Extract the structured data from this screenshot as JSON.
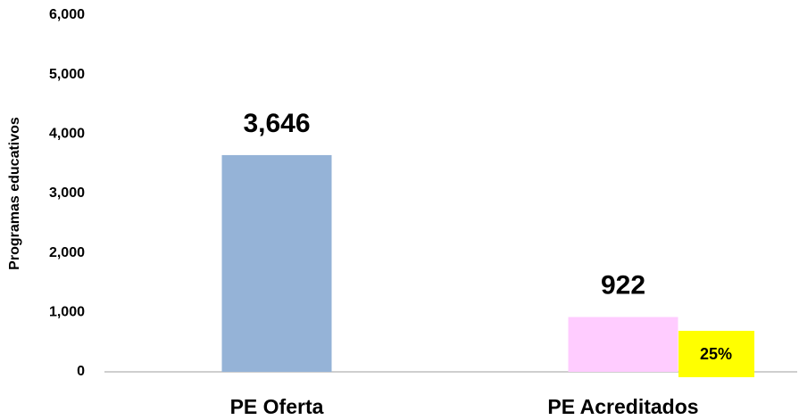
{
  "chart_data": {
    "type": "bar",
    "y_label": "Programas educativos",
    "categories": [
      "PE Oferta",
      "PE Acreditados"
    ],
    "values": [
      3646,
      922
    ],
    "value_labels": [
      "3,646",
      "922"
    ],
    "colors": [
      "#95b3d7",
      "#ffccff"
    ],
    "annotation": "25%",
    "annotation_color": "#ffff00",
    "ylim": [
      0,
      6000
    ],
    "yticks": [
      0,
      {
        "value": 1000,
        "label": "1,000"
      },
      {
        "value": 2000,
        "label": "2,000"
      },
      {
        "value": 3000,
        "label": "3,000"
      },
      {
        "value": 4000,
        "label": "4,000"
      },
      {
        "value": 5000,
        "label": "5,000"
      },
      {
        "value": 6000,
        "label": "6,000"
      }
    ],
    "grid": false
  }
}
